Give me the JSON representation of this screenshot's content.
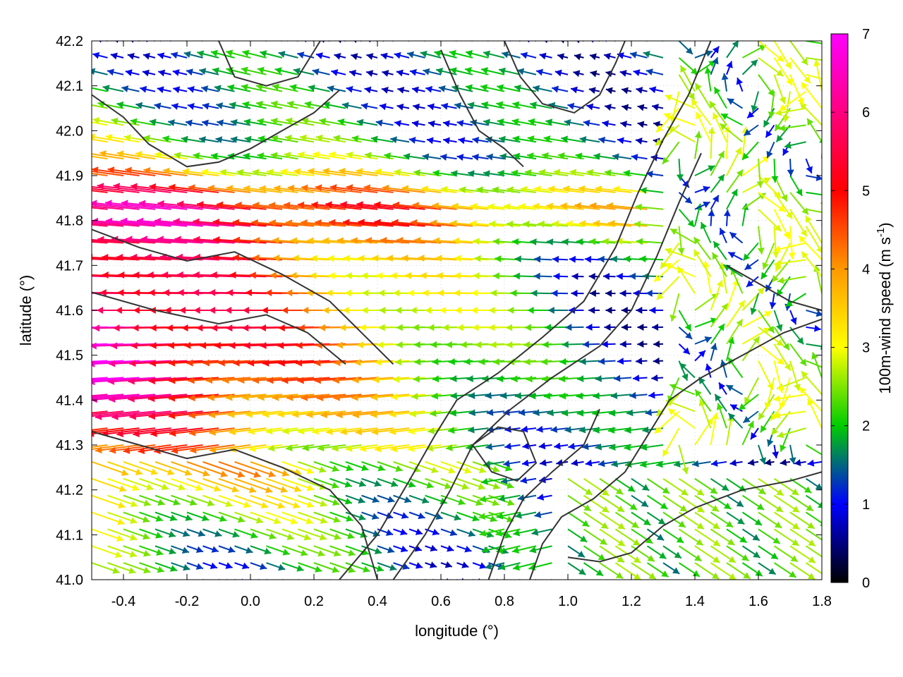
{
  "chart_data": {
    "type": "vector-field",
    "xlabel": "longitude (°)",
    "ylabel": "latitude (°)",
    "xlim": [
      -0.5,
      1.8
    ],
    "ylim": [
      41.0,
      42.2
    ],
    "xticks": [
      -0.4,
      -0.2,
      0.0,
      0.2,
      0.4,
      0.6,
      0.8,
      1.0,
      1.2,
      1.4,
      1.6,
      1.8
    ],
    "xtick_labels": [
      "-0.4",
      "-0.2",
      "0.0",
      "0.2",
      "0.4",
      "0.6",
      "0.8",
      "1.0",
      "1.2",
      "1.4",
      "1.6",
      "1.8"
    ],
    "yticks": [
      41.0,
      41.1,
      41.2,
      41.3,
      41.4,
      41.5,
      41.6,
      41.7,
      41.8,
      41.9,
      42.0,
      42.1,
      42.2
    ],
    "ytick_labels": [
      "41.0",
      "41.1",
      "41.2",
      "41.3",
      "41.4",
      "41.5",
      "41.6",
      "41.7",
      "41.8",
      "41.9",
      "42.0",
      "42.1",
      "42.2"
    ],
    "grid": true,
    "colorbar": {
      "label": "100m-wind speed (m s",
      "label_superscript": "-1",
      "label_close": ")",
      "range": [
        0,
        7
      ],
      "ticks": [
        0,
        1,
        2,
        3,
        4,
        5,
        6,
        7
      ],
      "tick_labels": [
        "0",
        "1",
        "2",
        "3",
        "4",
        "5",
        "6",
        "7"
      ],
      "colors": [
        "#000000",
        "#0000ff",
        "#00cc00",
        "#ffff00",
        "#ff9900",
        "#ff0000",
        "#ff00ff"
      ]
    },
    "contour_color": "#333333",
    "contours": [
      [
        [
          -0.5,
          42.08
        ],
        [
          -0.4,
          42.03
        ],
        [
          -0.32,
          41.97
        ],
        [
          -0.2,
          41.92
        ],
        [
          -0.1,
          41.93
        ],
        [
          0.0,
          41.96
        ],
        [
          0.1,
          42.0
        ],
        [
          0.2,
          42.04
        ],
        [
          0.28,
          42.09
        ]
      ],
      [
        [
          -0.5,
          41.78
        ],
        [
          -0.35,
          41.74
        ],
        [
          -0.2,
          41.71
        ],
        [
          -0.05,
          41.73
        ],
        [
          0.1,
          41.68
        ],
        [
          0.25,
          41.62
        ],
        [
          0.35,
          41.55
        ],
        [
          0.45,
          41.48
        ]
      ],
      [
        [
          -0.5,
          41.64
        ],
        [
          -0.3,
          41.6
        ],
        [
          -0.1,
          41.57
        ],
        [
          0.05,
          41.59
        ],
        [
          0.18,
          41.55
        ],
        [
          0.3,
          41.48
        ]
      ],
      [
        [
          -0.5,
          41.33
        ],
        [
          -0.35,
          41.3
        ],
        [
          -0.2,
          41.27
        ],
        [
          -0.05,
          41.29
        ],
        [
          0.1,
          41.25
        ],
        [
          0.25,
          41.2
        ],
        [
          0.35,
          41.12
        ],
        [
          0.4,
          41.0
        ]
      ],
      [
        [
          0.28,
          41.0
        ],
        [
          0.4,
          41.1
        ],
        [
          0.5,
          41.22
        ],
        [
          0.58,
          41.32
        ],
        [
          0.65,
          41.4
        ],
        [
          0.78,
          41.46
        ],
        [
          0.92,
          41.54
        ],
        [
          1.05,
          41.62
        ],
        [
          1.15,
          41.74
        ],
        [
          1.22,
          41.86
        ],
        [
          1.3,
          41.98
        ],
        [
          1.38,
          42.08
        ],
        [
          1.45,
          42.2
        ]
      ],
      [
        [
          0.45,
          41.0
        ],
        [
          0.55,
          41.1
        ],
        [
          0.63,
          41.2
        ],
        [
          0.7,
          41.3
        ],
        [
          0.82,
          41.38
        ],
        [
          0.95,
          41.45
        ],
        [
          1.1,
          41.52
        ],
        [
          1.2,
          41.6
        ],
        [
          1.28,
          41.72
        ],
        [
          1.35,
          41.84
        ],
        [
          1.42,
          41.95
        ]
      ],
      [
        [
          0.75,
          41.0
        ],
        [
          0.8,
          41.1
        ],
        [
          0.86,
          41.18
        ],
        [
          0.95,
          41.24
        ],
        [
          1.05,
          41.3
        ],
        [
          1.1,
          41.38
        ]
      ],
      [
        [
          0.88,
          41.0
        ],
        [
          0.92,
          41.08
        ],
        [
          0.98,
          41.14
        ],
        [
          1.08,
          41.18
        ],
        [
          1.18,
          41.24
        ],
        [
          1.25,
          41.32
        ],
        [
          1.32,
          41.4
        ],
        [
          1.42,
          41.45
        ],
        [
          1.55,
          41.5
        ],
        [
          1.68,
          41.55
        ],
        [
          1.8,
          41.58
        ]
      ],
      [
        [
          0.8,
          42.2
        ],
        [
          0.85,
          42.12
        ],
        [
          0.92,
          42.06
        ],
        [
          1.02,
          42.04
        ],
        [
          1.1,
          42.08
        ],
        [
          1.15,
          42.15
        ],
        [
          1.18,
          42.2
        ]
      ],
      [
        [
          0.6,
          42.18
        ],
        [
          0.66,
          42.08
        ],
        [
          0.72,
          42.0
        ],
        [
          0.8,
          41.96
        ],
        [
          0.86,
          41.92
        ]
      ],
      [
        [
          0.7,
          41.3
        ],
        [
          0.78,
          41.34
        ],
        [
          0.86,
          41.33
        ],
        [
          0.9,
          41.26
        ],
        [
          0.84,
          41.22
        ],
        [
          0.76,
          41.24
        ],
        [
          0.7,
          41.3
        ]
      ],
      [
        [
          1.5,
          41.7
        ],
        [
          1.6,
          41.66
        ],
        [
          1.7,
          41.62
        ],
        [
          1.8,
          41.6
        ]
      ],
      [
        [
          1.0,
          41.05
        ],
        [
          1.1,
          41.04
        ],
        [
          1.2,
          41.06
        ],
        [
          1.3,
          41.12
        ],
        [
          1.4,
          41.16
        ],
        [
          1.55,
          41.2
        ],
        [
          1.7,
          41.22
        ],
        [
          1.8,
          41.24
        ]
      ],
      [
        [
          -0.1,
          42.2
        ],
        [
          -0.05,
          42.12
        ],
        [
          0.05,
          42.1
        ],
        [
          0.15,
          42.12
        ],
        [
          0.22,
          42.2
        ]
      ]
    ]
  }
}
